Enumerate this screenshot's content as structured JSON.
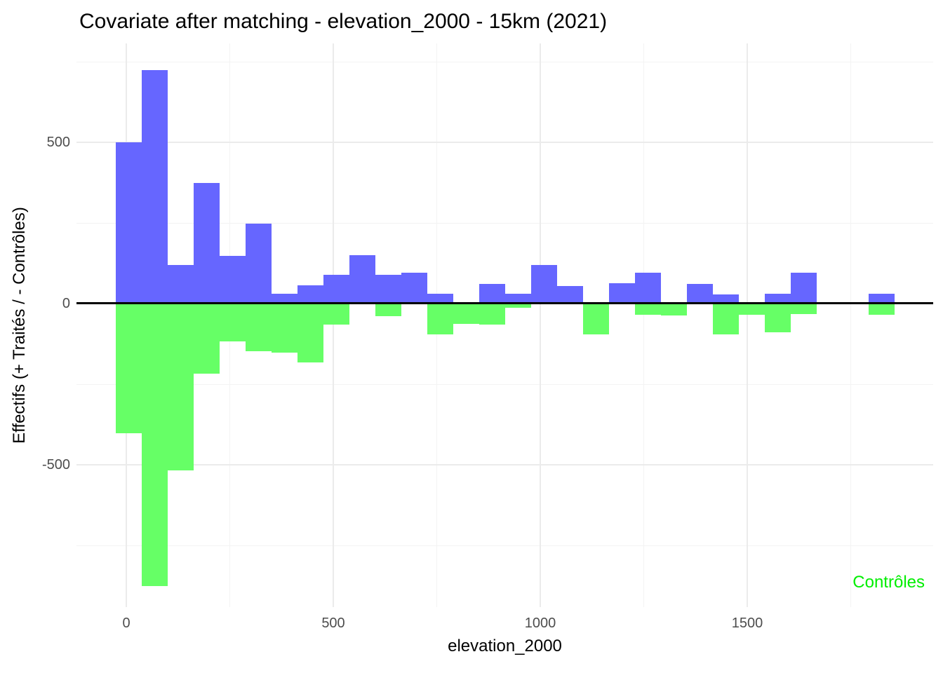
{
  "title": "Covariate after matching - elevation_2000 - 15km (2021)",
  "axes": {
    "x_label": "elevation_2000",
    "y_label": "Effectifs (+ Traités / - Contrôles)",
    "x_ticks": [
      "0",
      "500",
      "1000",
      "1500"
    ],
    "y_ticks": [
      "500",
      "0",
      "-500"
    ]
  },
  "legend": {
    "controles_label": "Contrôles"
  },
  "colors": {
    "traites_fill": "#6666FF",
    "controles_fill": "#66FF66",
    "legend_text": "#00EE00",
    "zero_line": "#000000",
    "grid_major": "#EBEBEB",
    "grid_minor": "#F3F3F3",
    "tick_text": "#4D4D4D",
    "text": "#000000"
  },
  "chart_data": {
    "type": "bar",
    "subtype": "back-to-back-histogram",
    "title": "Covariate after matching - elevation_2000 - 15km (2021)",
    "xlabel": "elevation_2000",
    "ylabel": "Effectifs (+ Traités / - Contrôles)",
    "bin_width": 62.7,
    "x_bin_centers": [
      6,
      69,
      131,
      194,
      257,
      319,
      382,
      445,
      507,
      570,
      633,
      695,
      758,
      821,
      883,
      946,
      1009,
      1071,
      1134,
      1197,
      1259,
      1322,
      1385,
      1447,
      1510,
      1573,
      1635,
      1698,
      1761,
      1823
    ],
    "series": [
      {
        "name": "Traités",
        "direction": "positive",
        "color": "#6666FF",
        "values": [
          500,
          725,
          120,
          375,
          148,
          248,
          30,
          57,
          90,
          150,
          90,
          95,
          30,
          0,
          60,
          30,
          120,
          55,
          0,
          63,
          95,
          0,
          60,
          28,
          0,
          30,
          95,
          0,
          0,
          30
        ]
      },
      {
        "name": "Contrôles",
        "direction": "negative",
        "color": "#66FF66",
        "values": [
          -403,
          -875,
          -517,
          -218,
          -118,
          -148,
          -152,
          -183,
          -66,
          0,
          -40,
          0,
          -95,
          -62,
          -65,
          -13,
          0,
          0,
          -96,
          0,
          -34,
          -38,
          0,
          -95,
          -35,
          -90,
          -33,
          0,
          0,
          -35
        ]
      }
    ],
    "x_major_ticks": [
      0,
      500,
      1000,
      1500
    ],
    "x_minor_ticks": [
      250,
      750,
      1250,
      1750
    ],
    "y_major_ticks": [
      500,
      0,
      -500
    ],
    "y_minor_ticks": [
      750,
      250,
      -250,
      -750
    ],
    "xlim": [
      -120,
      1949
    ],
    "ylim": [
      -941,
      806
    ],
    "grid": true,
    "zero_line": true,
    "legend_position": "bottom-right-inside"
  }
}
